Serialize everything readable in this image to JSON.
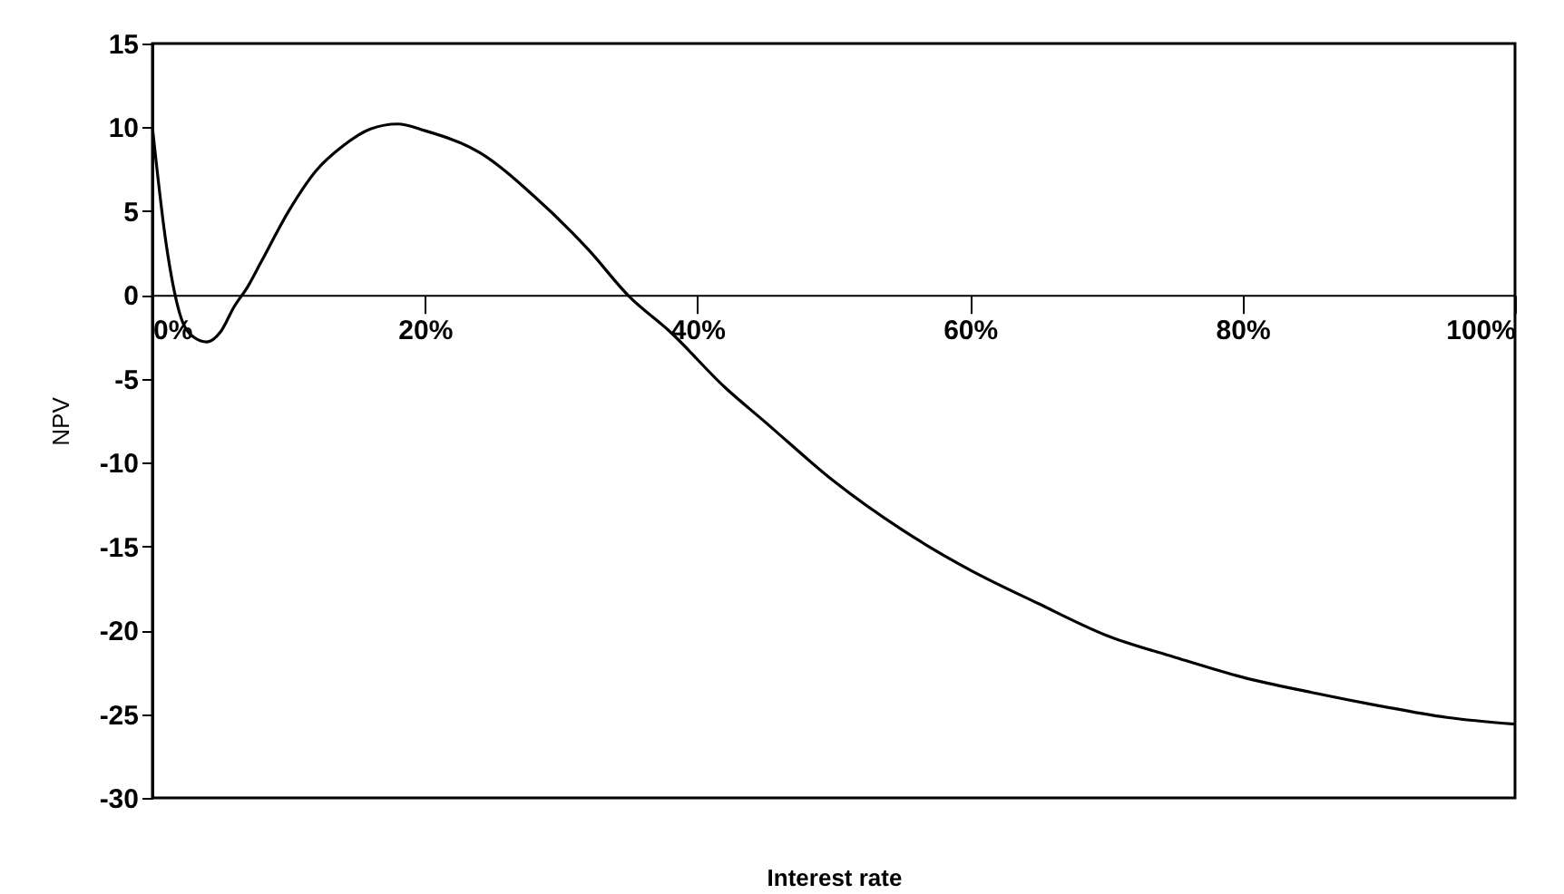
{
  "chart_data": {
    "type": "line",
    "xlabel": "Interest rate",
    "ylabel": "NPV",
    "x": [
      0,
      1,
      2,
      3,
      4,
      5,
      6,
      7,
      8,
      10,
      12,
      14,
      16,
      18,
      20,
      24,
      28,
      32,
      35,
      38,
      42,
      45,
      50,
      55,
      60,
      65,
      70,
      75,
      80,
      85,
      90,
      95,
      100
    ],
    "series": [
      {
        "color": "#000000",
        "values": [
          10,
          3.1,
          -1.1,
          -2.5,
          -2.8,
          -2.2,
          -0.7,
          0.5,
          2,
          5,
          7.4,
          8.9,
          9.9,
          10.2,
          9.8,
          8.5,
          5.9,
          2.7,
          -0.1,
          -2.2,
          -5.5,
          -7.6,
          -11.1,
          -14.0,
          -16.4,
          -18.4,
          -20.3,
          -21.6,
          -22.8,
          -23.7,
          -24.5,
          -25.2,
          -25.6
        ]
      }
    ],
    "xlim": [
      0,
      100
    ],
    "xticks": [
      {
        "value": 0,
        "label": "0%"
      },
      {
        "value": 20,
        "label": "20%"
      },
      {
        "value": 40,
        "label": "40%"
      },
      {
        "value": 60,
        "label": "60%"
      },
      {
        "value": 80,
        "label": "80%"
      },
      {
        "value": 100,
        "label": "100%"
      }
    ],
    "ylim": [
      -30,
      15
    ],
    "yticks": [
      -30,
      -25,
      -20,
      -15,
      -10,
      -5,
      0,
      5,
      10,
      15
    ],
    "grid": false,
    "marker": "none",
    "line_style": "solid"
  }
}
